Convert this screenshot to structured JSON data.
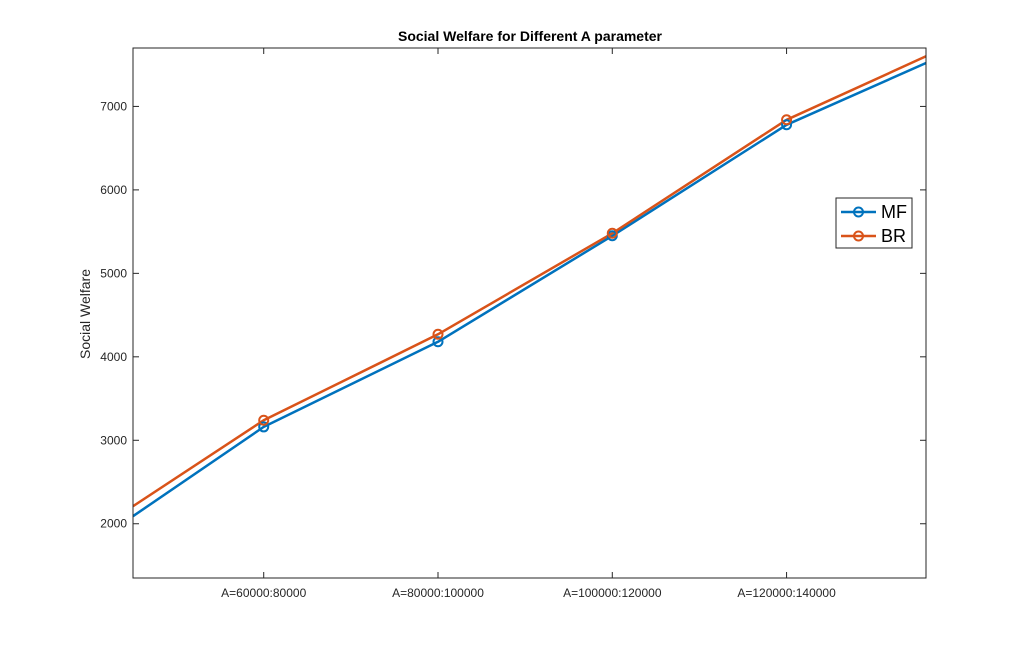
{
  "chart_data": {
    "type": "line",
    "title": "Social Welfare for Different A parameter",
    "xlabel": "",
    "ylabel": "Social Welfare",
    "categories": [
      "A=60000:80000",
      "A=80000:100000",
      "A=100000:120000",
      "A=120000:140000"
    ],
    "x_positions": [
      1,
      2,
      3,
      4
    ],
    "xlim": [
      0.25,
      4.8
    ],
    "ylim": [
      1350,
      7700
    ],
    "yticks": [
      2000,
      3000,
      4000,
      5000,
      6000,
      7000
    ],
    "grid": false,
    "legend_position": "right",
    "series": [
      {
        "name": "MF",
        "color": "#0072BD",
        "marker": "circle",
        "x": [
          0.25,
          1,
          2,
          3,
          4,
          4.8
        ],
        "values": [
          2090,
          3160,
          4180,
          5450,
          6780,
          7520
        ],
        "marker_x": [
          1,
          2,
          3,
          4
        ]
      },
      {
        "name": "BR",
        "color": "#D95319",
        "marker": "circle",
        "x": [
          0.25,
          1,
          2,
          3,
          4,
          4.8
        ],
        "values": [
          2210,
          3240,
          4270,
          5480,
          6840,
          7600
        ],
        "marker_x": [
          1,
          2,
          3,
          4
        ]
      }
    ]
  }
}
